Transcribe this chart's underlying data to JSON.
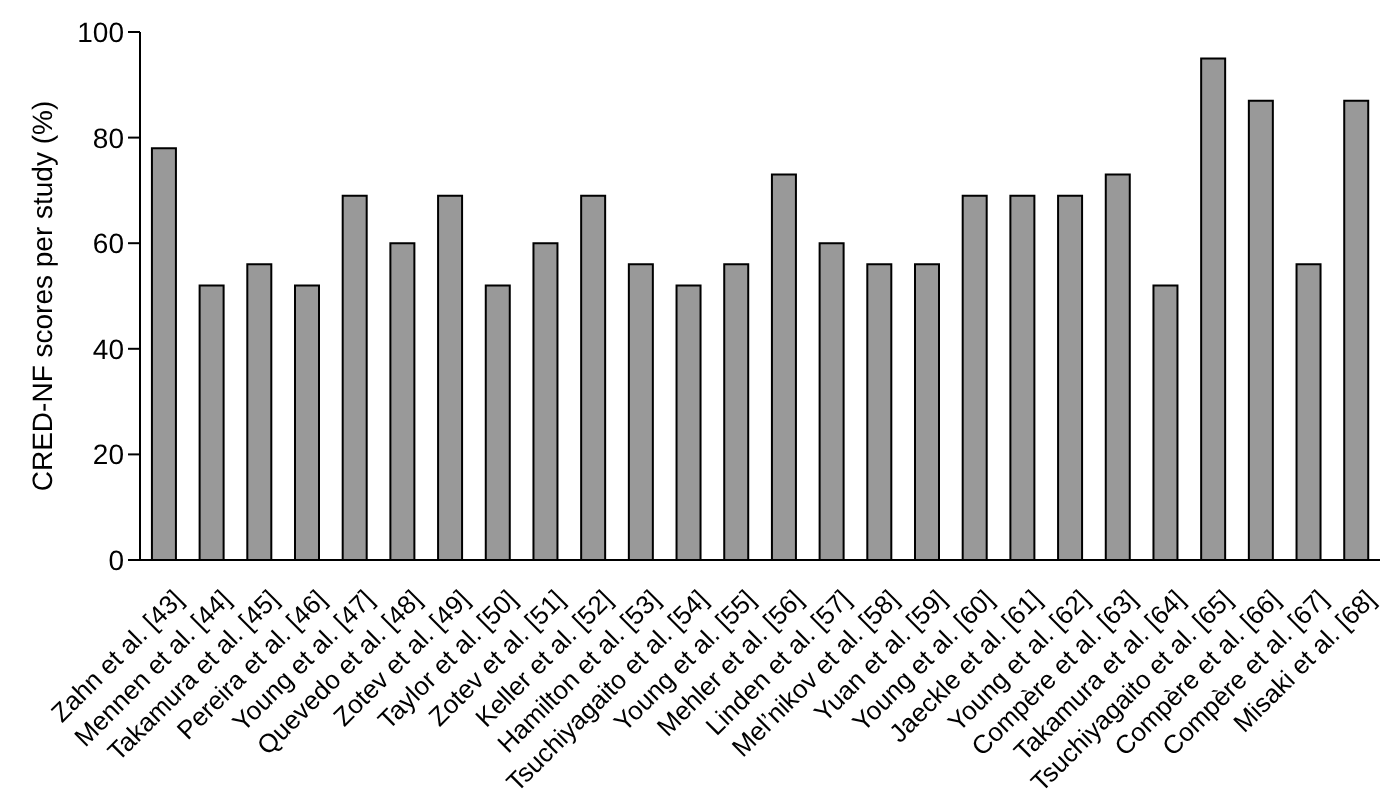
{
  "chart_data": {
    "type": "bar",
    "ylabel": "CRED-NF scores per study (%)",
    "categories": [
      "Zahn et al. [43]",
      "Mennen et al. [44]",
      "Takamura et al. [45]",
      "Pereira et al. [46]",
      "Young et al. [47]",
      "Quevedo et al. [48]",
      "Zotev et al. [49]",
      "Taylor et al. [50]",
      "Zotev et al. [51]",
      "Keller et al. [52]",
      "Hamilton et al. [53]",
      "Tsuchiyagaito et al. [54]",
      "Young et al. [55]",
      "Mehler et al. [56]",
      "Linden et al. [57]",
      "Mel’nikov et al. [58]",
      "Yuan et al. [59]",
      "Young et al. [60]",
      "Jaeckle et al. [61]",
      "Young et al. [62]",
      "Compère et al. [63]",
      "Takamura et al. [64]",
      "Tsuchiyagaito et al. [65]",
      "Compère et al. [66]",
      "Compère et al. [67]",
      "Misaki et al. [68]"
    ],
    "values": [
      78,
      52,
      56,
      52,
      69,
      60,
      69,
      52,
      60,
      69,
      56,
      52,
      56,
      73,
      60,
      56,
      56,
      69,
      69,
      69,
      73,
      52,
      95,
      87,
      56,
      87
    ],
    "color": "#999999",
    "ylim": [
      0,
      100
    ],
    "yticks": [
      0,
      20,
      40,
      60,
      80,
      100
    ],
    "grid": false
  }
}
